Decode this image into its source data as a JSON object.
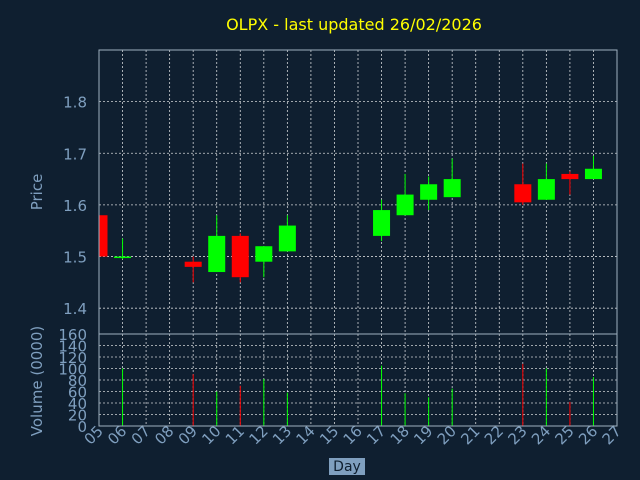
{
  "colors": {
    "background": "#0f1f30",
    "title": "#ffff00",
    "axis_text": "#7f9fbf",
    "frame": "#9fb0c0",
    "grid": "#ffffff",
    "up": "#00ff00",
    "down": "#ff0000"
  },
  "chart_data": {
    "type": "candlestick",
    "title": "OLPX - last updated 26/02/2026",
    "xlabel": "Day",
    "ylabel": "Price",
    "volume_label": "Volume (0000)",
    "price_ylim": [
      1.35,
      1.9
    ],
    "price_ticks": [
      "1.4",
      "1.5",
      "1.6",
      "1.7",
      "1.8"
    ],
    "volume_ylim": [
      0,
      160
    ],
    "volume_ticks": [
      "0",
      "20",
      "40",
      "60",
      "80",
      "100",
      "120",
      "140",
      "160"
    ],
    "x_ticks": [
      "05",
      "06",
      "07",
      "08",
      "09",
      "10",
      "11",
      "12",
      "13",
      "14",
      "15",
      "16",
      "17",
      "18",
      "19",
      "20",
      "21",
      "22",
      "23",
      "24",
      "25",
      "26",
      "27"
    ],
    "grid": true,
    "candles": [
      {
        "day": "05",
        "open": 1.58,
        "high": 1.58,
        "low": 1.5,
        "close": 1.5,
        "volume": 0
      },
      {
        "day": "06",
        "open": 1.5,
        "high": 1.535,
        "low": 1.495,
        "close": 1.5,
        "volume": 100
      },
      {
        "day": "09",
        "open": 1.49,
        "high": 1.5,
        "low": 1.45,
        "close": 1.48,
        "volume": 90
      },
      {
        "day": "10",
        "open": 1.47,
        "high": 1.58,
        "low": 1.47,
        "close": 1.54,
        "volume": 60
      },
      {
        "day": "11",
        "open": 1.54,
        "high": 1.545,
        "low": 1.45,
        "close": 1.46,
        "volume": 70
      },
      {
        "day": "12",
        "open": 1.49,
        "high": 1.52,
        "low": 1.46,
        "close": 1.52,
        "volume": 82
      },
      {
        "day": "13",
        "open": 1.51,
        "high": 1.58,
        "low": 1.51,
        "close": 1.56,
        "volume": 58
      },
      {
        "day": "17",
        "open": 1.54,
        "high": 1.61,
        "low": 1.53,
        "close": 1.59,
        "volume": 105
      },
      {
        "day": "18",
        "open": 1.58,
        "high": 1.66,
        "low": 1.58,
        "close": 1.62,
        "volume": 57
      },
      {
        "day": "19",
        "open": 1.61,
        "high": 1.655,
        "low": 1.59,
        "close": 1.64,
        "volume": 50
      },
      {
        "day": "20",
        "open": 1.615,
        "high": 1.69,
        "low": 1.615,
        "close": 1.65,
        "volume": 65
      },
      {
        "day": "23",
        "open": 1.64,
        "high": 1.68,
        "low": 1.6,
        "close": 1.605,
        "volume": 108
      },
      {
        "day": "24",
        "open": 1.61,
        "high": 1.68,
        "low": 1.61,
        "close": 1.65,
        "volume": 100
      },
      {
        "day": "25",
        "open": 1.66,
        "high": 1.665,
        "low": 1.62,
        "close": 1.65,
        "volume": 42
      },
      {
        "day": "26",
        "open": 1.65,
        "high": 1.695,
        "low": 1.65,
        "close": 1.67,
        "volume": 85
      }
    ]
  }
}
